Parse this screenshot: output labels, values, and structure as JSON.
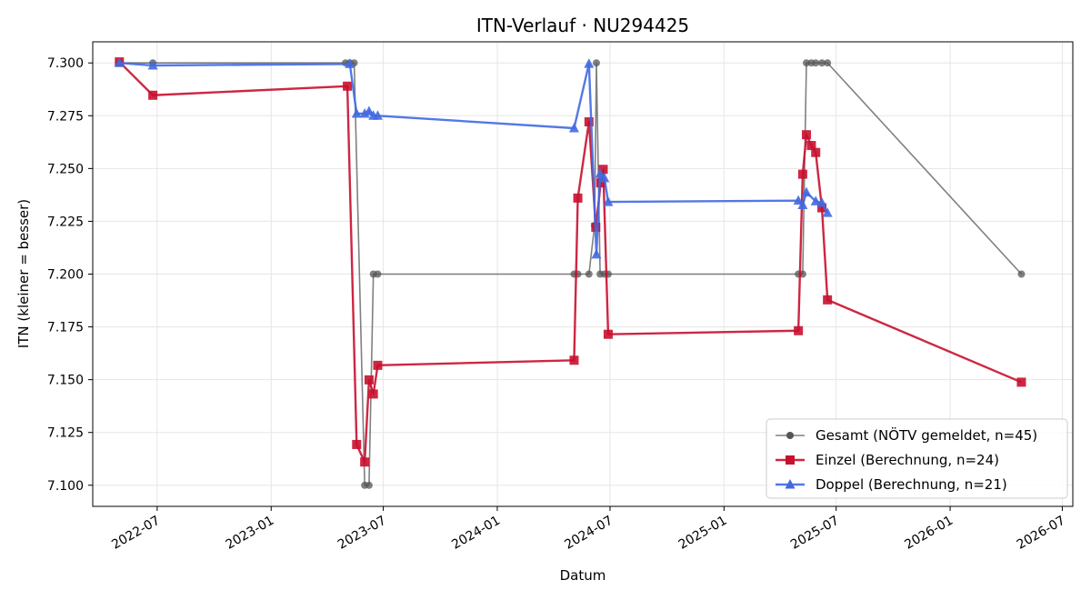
{
  "chart_data": {
    "type": "line",
    "title": "ITN-Verlauf · NU294425",
    "xlabel": "Datum",
    "ylabel": "ITN  (kleiner = besser)",
    "xlim": [
      "2022-03-19",
      "2026-07-18"
    ],
    "ylim": [
      7.09,
      7.31
    ],
    "x_ticks": [
      "2022-07",
      "2023-01",
      "2023-07",
      "2024-01",
      "2024-07",
      "2025-01",
      "2025-07",
      "2026-01",
      "2026-07"
    ],
    "y_ticks": [
      "7.100",
      "7.125",
      "7.150",
      "7.175",
      "7.200",
      "7.225",
      "7.250",
      "7.275",
      "7.300"
    ],
    "grid": true,
    "legend_position": "lower-right",
    "series": [
      {
        "name": "Gesamt (NÖTV gemeldet, n=45)",
        "color": "#555555",
        "marker": "circle",
        "points": [
          {
            "x": "2022-05-01",
            "y": 7.3
          },
          {
            "x": "2022-06-24",
            "y": 7.3
          },
          {
            "x": "2023-05-01",
            "y": 7.3
          },
          {
            "x": "2023-05-08",
            "y": 7.3
          },
          {
            "x": "2023-05-15",
            "y": 7.3
          },
          {
            "x": "2023-06-01",
            "y": 7.1
          },
          {
            "x": "2023-06-08",
            "y": 7.1
          },
          {
            "x": "2023-06-15",
            "y": 7.2
          },
          {
            "x": "2023-06-22",
            "y": 7.2
          },
          {
            "x": "2024-05-04",
            "y": 7.2
          },
          {
            "x": "2024-05-10",
            "y": 7.2
          },
          {
            "x": "2024-05-28",
            "y": 7.2
          },
          {
            "x": "2024-06-06",
            "y": 7.223
          },
          {
            "x": "2024-06-09",
            "y": 7.3
          },
          {
            "x": "2024-06-15",
            "y": 7.2
          },
          {
            "x": "2024-06-22",
            "y": 7.2
          },
          {
            "x": "2024-06-28",
            "y": 7.2
          },
          {
            "x": "2025-05-01",
            "y": 7.2
          },
          {
            "x": "2025-05-08",
            "y": 7.2
          },
          {
            "x": "2025-05-14",
            "y": 7.3
          },
          {
            "x": "2025-05-22",
            "y": 7.3
          },
          {
            "x": "2025-05-29",
            "y": 7.3
          },
          {
            "x": "2025-06-08",
            "y": 7.3
          },
          {
            "x": "2025-06-17",
            "y": 7.3
          },
          {
            "x": "2026-04-26",
            "y": 7.2
          }
        ]
      },
      {
        "name": "Einzel (Berechnung, n=24)",
        "color": "#c8102e",
        "marker": "square",
        "points": [
          {
            "x": "2022-05-01",
            "y": 7.3005
          },
          {
            "x": "2022-06-24",
            "y": 7.2847
          },
          {
            "x": "2023-05-04",
            "y": 7.289
          },
          {
            "x": "2023-05-19",
            "y": 7.1193
          },
          {
            "x": "2023-06-01",
            "y": 7.111
          },
          {
            "x": "2023-06-08",
            "y": 7.1499
          },
          {
            "x": "2023-06-15",
            "y": 7.1432
          },
          {
            "x": "2023-06-22",
            "y": 7.1568
          },
          {
            "x": "2024-05-04",
            "y": 7.1592
          },
          {
            "x": "2024-05-10",
            "y": 7.236
          },
          {
            "x": "2024-05-28",
            "y": 7.2721
          },
          {
            "x": "2024-06-08",
            "y": 7.2222
          },
          {
            "x": "2024-06-16",
            "y": 7.2432
          },
          {
            "x": "2024-06-20",
            "y": 7.2496
          },
          {
            "x": "2024-06-28",
            "y": 7.1715
          },
          {
            "x": "2025-05-01",
            "y": 7.1732
          },
          {
            "x": "2025-05-08",
            "y": 7.2473
          },
          {
            "x": "2025-05-14",
            "y": 7.266
          },
          {
            "x": "2025-05-22",
            "y": 7.2609
          },
          {
            "x": "2025-05-29",
            "y": 7.2576
          },
          {
            "x": "2025-06-08",
            "y": 7.2314
          },
          {
            "x": "2025-06-17",
            "y": 7.1878
          },
          {
            "x": "2026-04-26",
            "y": 7.1488
          }
        ]
      },
      {
        "name": "Doppel (Berechnung, n=21)",
        "color": "#4169e1",
        "marker": "triangle",
        "points": [
          {
            "x": "2022-05-01",
            "y": 7.3
          },
          {
            "x": "2022-06-24",
            "y": 7.2988
          },
          {
            "x": "2023-05-08",
            "y": 7.2995
          },
          {
            "x": "2023-05-19",
            "y": 7.276
          },
          {
            "x": "2023-06-01",
            "y": 7.276
          },
          {
            "x": "2023-06-08",
            "y": 7.2771
          },
          {
            "x": "2023-06-15",
            "y": 7.275
          },
          {
            "x": "2023-06-22",
            "y": 7.275
          },
          {
            "x": "2024-05-04",
            "y": 7.2691
          },
          {
            "x": "2024-05-28",
            "y": 7.2996
          },
          {
            "x": "2024-06-09",
            "y": 7.2093
          },
          {
            "x": "2024-06-15",
            "y": 7.2475
          },
          {
            "x": "2024-06-22",
            "y": 7.2455
          },
          {
            "x": "2024-06-28",
            "y": 7.2342
          },
          {
            "x": "2025-05-01",
            "y": 7.2348
          },
          {
            "x": "2025-05-08",
            "y": 7.2327
          },
          {
            "x": "2025-05-14",
            "y": 7.2387
          },
          {
            "x": "2025-05-29",
            "y": 7.2345
          },
          {
            "x": "2025-06-08",
            "y": 7.2338
          },
          {
            "x": "2025-06-17",
            "y": 7.229
          }
        ]
      }
    ]
  }
}
